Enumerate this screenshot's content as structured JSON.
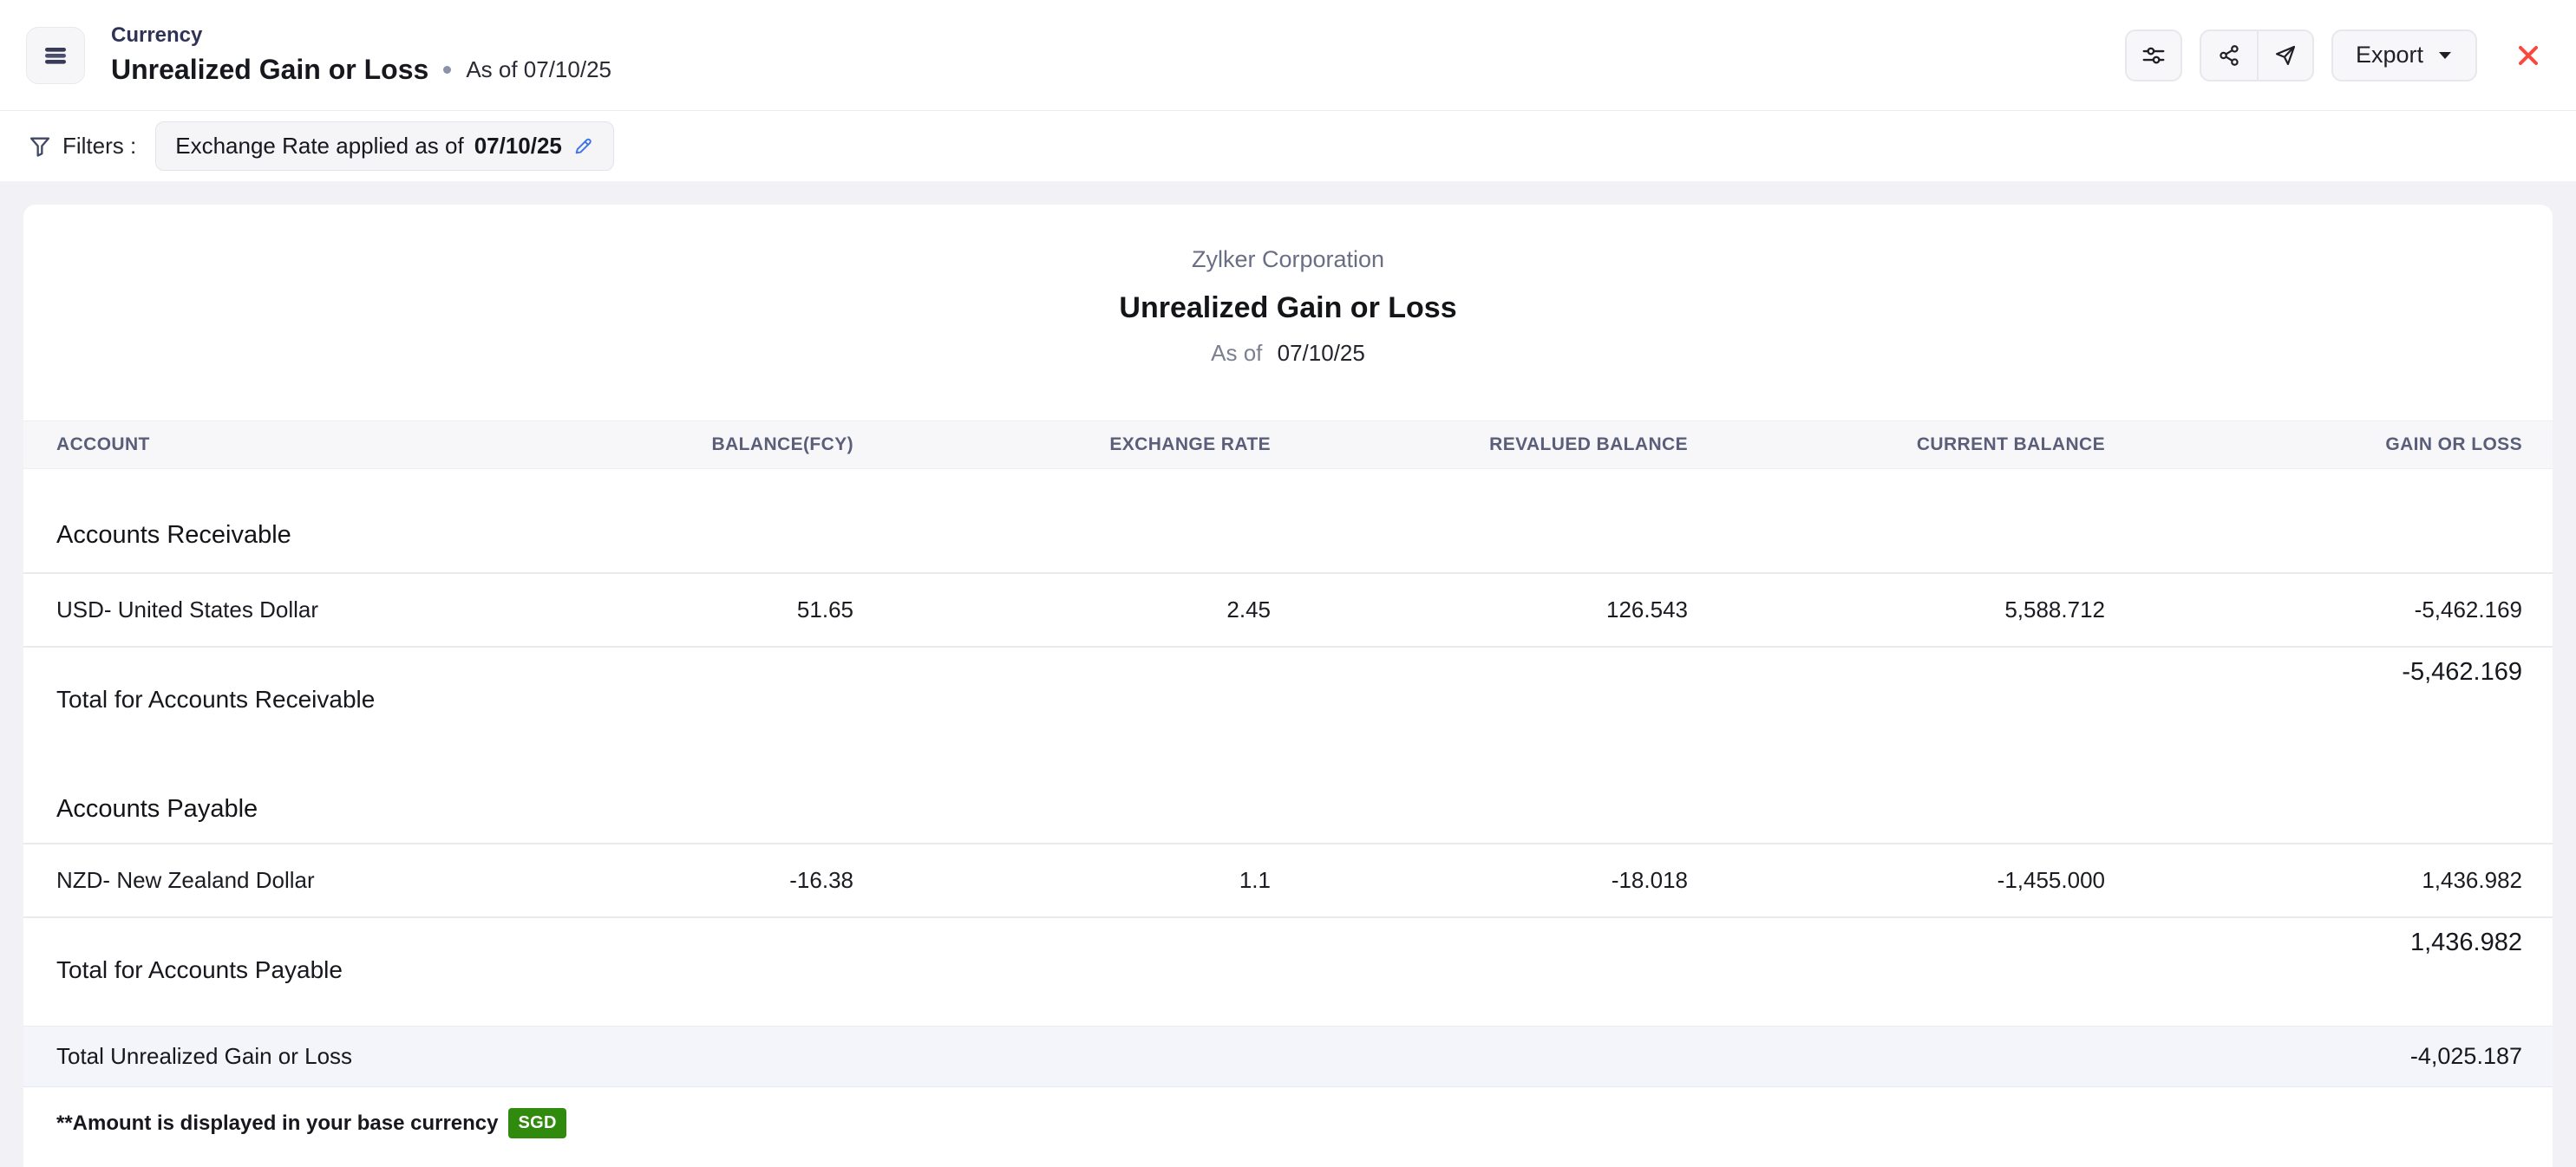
{
  "header": {
    "breadcrumb": "Currency",
    "title": "Unrealized Gain or Loss",
    "as_of": "As of 07/10/25",
    "export_label": "Export"
  },
  "filters": {
    "label": "Filters :",
    "pill_text": "Exchange Rate applied as of",
    "pill_date": "07/10/25"
  },
  "report": {
    "company": "Zylker Corporation",
    "title": "Unrealized Gain or Loss",
    "as_of_label": "As of",
    "as_of_date": "07/10/25"
  },
  "table": {
    "columns": [
      "ACCOUNT",
      "BALANCE(FCY)",
      "EXCHANGE RATE",
      "REVALUED BALANCE",
      "CURRENT BALANCE",
      "GAIN OR LOSS"
    ],
    "sections": [
      {
        "name": "Accounts Receivable",
        "rows": [
          {
            "account": "USD- United States Dollar",
            "balance_fcy": "51.65",
            "exchange_rate": "2.45",
            "revalued_balance": "126.543",
            "current_balance": "5,588.712",
            "gain_or_loss": "-5,462.169"
          }
        ],
        "total_label": "Total for Accounts Receivable",
        "total_value": "-5,462.169"
      },
      {
        "name": "Accounts Payable",
        "rows": [
          {
            "account": "NZD- New Zealand Dollar",
            "balance_fcy": "-16.38",
            "exchange_rate": "1.1",
            "revalued_balance": "-18.018",
            "current_balance": "-1,455.000",
            "gain_or_loss": "1,436.982"
          }
        ],
        "total_label": "Total for Accounts Payable",
        "total_value": "1,436.982"
      }
    ],
    "grand_total_label": "Total Unrealized Gain or Loss",
    "grand_total_value": "-4,025.187"
  },
  "footer": {
    "note": "**Amount is displayed in your base currency",
    "badge": "SGD"
  },
  "colors": {
    "close_red": "#f9493f",
    "badge_green": "#2f8a0d",
    "edit_blue": "#3f74e8",
    "page_bg": "#f1f1f6",
    "grand_total_bg": "#f4f4fb"
  }
}
